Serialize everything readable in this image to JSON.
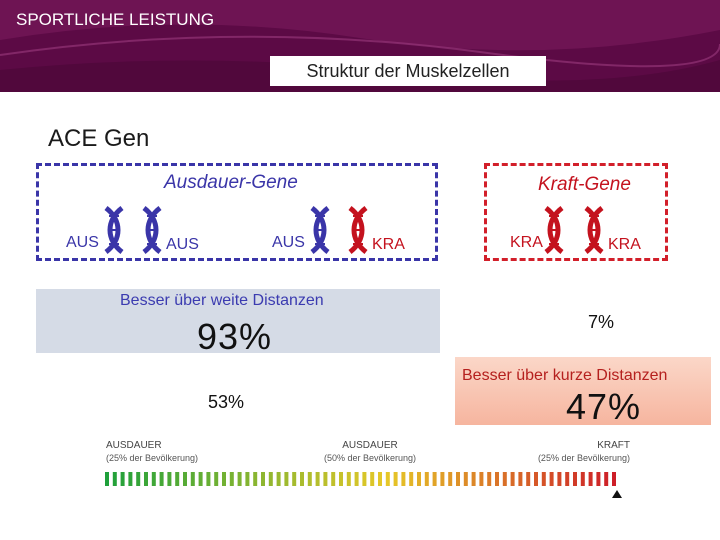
{
  "header": {
    "section_title": "SPORTLICHE LEISTUNG",
    "subtitle": "Struktur der Muskelzellen"
  },
  "gene_title": "ACE Gen",
  "endurance_genes": {
    "label": "Ausdauer-Gene",
    "pairs": [
      {
        "left": "AUS",
        "right": "AUS"
      },
      {
        "left": "AUS",
        "right": "KRA"
      }
    ]
  },
  "strength_genes": {
    "label": "Kraft-Gene",
    "pair": {
      "left": "KRA",
      "right": "KRA"
    }
  },
  "long_distance": {
    "label": "Besser über weite Distanzen",
    "percent_large": "93%",
    "percent_small": "53%"
  },
  "short_distance": {
    "label": "Besser über kurze Distanzen",
    "percent_small": "7%",
    "percent_large": "47%"
  },
  "scale": {
    "left": {
      "title": "AUSDAUER",
      "note": "(25% der Bevölkerung)"
    },
    "middle": {
      "title": "AUSDAUER",
      "note": "(50% der Bevölkerung)"
    },
    "right": {
      "title": "KRAFT",
      "note": "(25% der Bevölkerung)"
    }
  },
  "colors": {
    "banner": "#5c0a45",
    "blue": "#3a35a8",
    "red": "#d21f2a",
    "green": "#1fa03b"
  },
  "icons": {
    "dna": "dna-helix-icon",
    "marker": "triangle-up-icon"
  }
}
